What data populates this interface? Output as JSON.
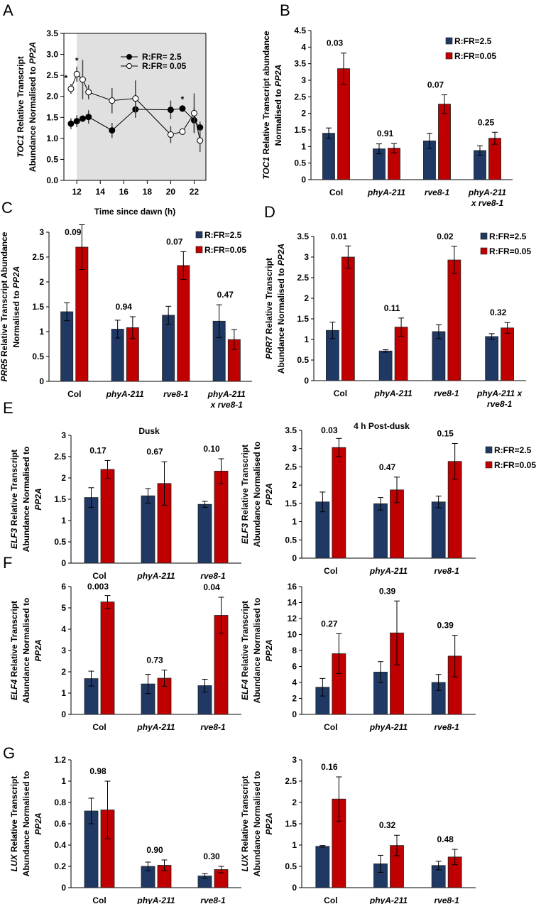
{
  "colors": {
    "high": "#1f3864",
    "low": "#c00000",
    "shade": "#e0e0e0"
  },
  "chart_data": [
    {
      "id": "A",
      "type": "line",
      "letter": "A",
      "xlabel": "Time since dawn (h)",
      "ylabel": [
        [
          {
            "t": "TOC1",
            "i": true
          },
          {
            "t": " Relative Transcript",
            "i": false
          }
        ],
        [
          {
            "t": "Abundance Normalised to ",
            "i": false
          },
          {
            "t": "PP2A",
            "i": true
          }
        ]
      ],
      "xlim": [
        10.9,
        23
      ],
      "ylim": [
        0,
        3.5
      ],
      "xticks": [
        12,
        14,
        16,
        18,
        20,
        22
      ],
      "yticks": [
        "0.0",
        "0.5",
        "1.0",
        "1.5",
        "2.0",
        "2.5",
        "3.0",
        "3.5"
      ],
      "shaded_from": 12,
      "x": [
        11.5,
        12,
        12.5,
        13,
        15,
        17,
        20,
        21,
        22,
        22.5
      ],
      "series": [
        {
          "name": "R:FR= 2.5",
          "filled": true,
          "values": [
            1.35,
            1.41,
            1.47,
            1.51,
            1.19,
            1.69,
            1.68,
            1.71,
            1.43,
            1.26
          ],
          "err": [
            0.13,
            0.14,
            0.05,
            0.16,
            0.18,
            0.2,
            0.22,
            0.08,
            0.3,
            0.14
          ]
        },
        {
          "name": "R:FR= 0.05",
          "filled": false,
          "values": [
            2.18,
            2.53,
            2.4,
            2.1,
            1.9,
            1.95,
            1.09,
            1.16,
            1.6,
            0.95
          ],
          "err": [
            0.12,
            0.18,
            0.47,
            0.17,
            0.3,
            0.43,
            0.2,
            0.03,
            0.47,
            0.27
          ]
        }
      ],
      "significance_marks": [
        {
          "x": 11.5,
          "text": "*"
        },
        {
          "x": 12,
          "text": "*"
        },
        {
          "x": 21,
          "text": "*"
        }
      ]
    },
    {
      "id": "B",
      "type": "bar",
      "letter": "B",
      "ylabel": [
        [
          {
            "t": "TOC1",
            "i": true
          },
          {
            "t": " Relative Transcript abundance",
            "i": false
          }
        ],
        [
          {
            "t": "Normalised to ",
            "i": false
          },
          {
            "t": "PP2A",
            "i": true
          }
        ]
      ],
      "ylim": [
        0,
        4.5
      ],
      "ystep": 0.5,
      "categories": [
        [
          "Col"
        ],
        [
          "phyA-211"
        ],
        [
          "rve8-1"
        ],
        [
          "phyA-211",
          "x rve8-1"
        ]
      ],
      "series": [
        {
          "name": "R:FR=2.5",
          "values": [
            1.4,
            0.93,
            1.17,
            0.88
          ],
          "err": [
            0.16,
            0.15,
            0.23,
            0.14
          ]
        },
        {
          "name": "R:FR=0.05",
          "values": [
            3.35,
            0.95,
            2.28,
            1.25
          ],
          "err": [
            0.47,
            0.14,
            0.28,
            0.18
          ]
        }
      ],
      "pvalues": [
        "0.03",
        "0.91",
        "0.07",
        "0.25"
      ]
    },
    {
      "id": "C",
      "type": "bar",
      "letter": "C",
      "ylabel": [
        [
          {
            "t": "PRR5",
            "i": true
          },
          {
            "t": " Relative Transcript Abundance",
            "i": false
          }
        ],
        [
          {
            "t": "Normalised to ",
            "i": false
          },
          {
            "t": "PP2A",
            "i": true
          }
        ]
      ],
      "ylim": [
        0,
        3
      ],
      "ystep": 0.5,
      "categories": [
        [
          "Col"
        ],
        [
          "phyA-211"
        ],
        [
          "rve8-1"
        ],
        [
          "phyA-211",
          "x rve8-1"
        ]
      ],
      "series": [
        {
          "name": "R:FR=2.5",
          "values": [
            1.4,
            1.05,
            1.33,
            1.21
          ],
          "err": [
            0.18,
            0.18,
            0.18,
            0.33
          ]
        },
        {
          "name": "R:FR=0.05",
          "values": [
            2.7,
            1.08,
            2.33,
            0.84
          ],
          "err": [
            0.45,
            0.22,
            0.28,
            0.2
          ]
        }
      ],
      "pvalues": [
        "0.09",
        "0.94",
        "0.07",
        "0.47"
      ]
    },
    {
      "id": "D",
      "type": "bar",
      "letter": "D",
      "ylabel": [
        [
          {
            "t": "PRR7",
            "i": true
          },
          {
            "t": " Relative Transcript",
            "i": false
          }
        ],
        [
          {
            "t": "Abundance Normalised to ",
            "i": false
          },
          {
            "t": "PP2A",
            "i": true
          }
        ]
      ],
      "ylim": [
        0,
        3.5
      ],
      "ystep": 0.5,
      "categories": [
        [
          "Col"
        ],
        [
          "phyA-211"
        ],
        [
          "rve8-1"
        ],
        [
          "phyA-211 x",
          "rve8-1"
        ]
      ],
      "series": [
        {
          "name": "R:FR=2.5",
          "values": [
            1.22,
            0.72,
            1.19,
            1.07
          ],
          "err": [
            0.2,
            0.03,
            0.17,
            0.07
          ]
        },
        {
          "name": "R:FR=0.05",
          "values": [
            3.0,
            1.3,
            2.93,
            1.28
          ],
          "err": [
            0.27,
            0.22,
            0.33,
            0.13
          ]
        }
      ],
      "pvalues": [
        "0.01",
        "0.11",
        "0.02",
        "0.32"
      ]
    },
    {
      "id": "E1",
      "type": "bar",
      "letter": "E",
      "title": "Dusk",
      "ylabel": [
        [
          {
            "t": "ELF3",
            "i": true
          },
          {
            "t": " Relative Transcript",
            "i": false
          }
        ],
        [
          {
            "t": "Abundance Normalised to",
            "i": false
          }
        ],
        [
          {
            "t": "PP2A",
            "i": true
          }
        ]
      ],
      "ylim": [
        0,
        3
      ],
      "ystep": 0.5,
      "categories": [
        [
          "Col"
        ],
        [
          "phyA-211"
        ],
        [
          "rve8-1"
        ]
      ],
      "series": [
        {
          "name": "R:FR=2.5",
          "values": [
            1.54,
            1.58,
            1.38
          ],
          "err": [
            0.23,
            0.17,
            0.07
          ]
        },
        {
          "name": "R:FR=0.05",
          "values": [
            2.2,
            1.87,
            2.16
          ],
          "err": [
            0.21,
            0.51,
            0.29
          ]
        }
      ],
      "pvalues": [
        "0.17",
        "0.67",
        "0.10"
      ]
    },
    {
      "id": "E2",
      "type": "bar",
      "title": "4 h Post-dusk",
      "ylabel": [
        [
          {
            "t": "ELF3",
            "i": true
          },
          {
            "t": " Relative Transcript",
            "i": false
          }
        ],
        [
          {
            "t": "Abundance Normalised to",
            "i": false
          }
        ],
        [
          {
            "t": "PP2A",
            "i": true
          }
        ]
      ],
      "ylim": [
        0,
        3.5
      ],
      "ystep": 0.5,
      "categories": [
        [
          "Col"
        ],
        [
          "phyA-211"
        ],
        [
          "rve8-1"
        ]
      ],
      "series": [
        {
          "name": "R:FR=2.5",
          "values": [
            1.54,
            1.49,
            1.54
          ],
          "err": [
            0.27,
            0.17,
            0.16
          ]
        },
        {
          "name": "R:FR=0.05",
          "values": [
            3.03,
            1.87,
            2.65
          ],
          "err": [
            0.25,
            0.35,
            0.49
          ]
        }
      ],
      "pvalues": [
        "0.03",
        "0.47",
        "0.15"
      ]
    },
    {
      "id": "F1",
      "type": "bar",
      "letter": "F",
      "ylabel": [
        [
          {
            "t": "ELF4",
            "i": true
          },
          {
            "t": " Relative Transcript",
            "i": false
          }
        ],
        [
          {
            "t": "Abundance Normalised to",
            "i": false
          }
        ],
        [
          {
            "t": "PP2A",
            "i": true
          }
        ]
      ],
      "ylim": [
        0,
        6
      ],
      "ystep": 1,
      "categories": [
        [
          "Col"
        ],
        [
          "phyA-211"
        ],
        [
          "rve8-1"
        ]
      ],
      "series": [
        {
          "name": "R:FR=2.5",
          "values": [
            1.68,
            1.43,
            1.35
          ],
          "err": [
            0.35,
            0.45,
            0.3
          ]
        },
        {
          "name": "R:FR=0.05",
          "values": [
            5.28,
            1.7,
            4.65
          ],
          "err": [
            0.3,
            0.38,
            0.85
          ]
        }
      ],
      "pvalues": [
        "0.003",
        "0.73",
        "0.04"
      ]
    },
    {
      "id": "F2",
      "type": "bar",
      "ylabel": [
        [
          {
            "t": "ELF4",
            "i": true
          },
          {
            "t": " Relative Transcript",
            "i": false
          }
        ],
        [
          {
            "t": "Abundance Normalised to",
            "i": false
          }
        ],
        [
          {
            "t": "PP2A",
            "i": true
          }
        ]
      ],
      "ylim": [
        0,
        16
      ],
      "ystep": 2,
      "categories": [
        [
          "Col"
        ],
        [
          "phyA-211"
        ],
        [
          "rve8-1"
        ]
      ],
      "series": [
        {
          "name": "R:FR=2.5",
          "values": [
            3.4,
            5.3,
            4.0
          ],
          "err": [
            1.1,
            1.3,
            1.0
          ]
        },
        {
          "name": "R:FR=0.05",
          "values": [
            7.6,
            10.2,
            7.3
          ],
          "err": [
            2.5,
            4.0,
            2.6
          ]
        }
      ],
      "pvalues": [
        "0.27",
        "0.39",
        "0.39"
      ]
    },
    {
      "id": "G1",
      "type": "bar",
      "letter": "G",
      "ylabel": [
        [
          {
            "t": "LUX",
            "i": true
          },
          {
            "t": " Relative Transcript",
            "i": false
          }
        ],
        [
          {
            "t": "Abundance Normalised to",
            "i": false
          }
        ],
        [
          {
            "t": "PP2A",
            "i": true
          }
        ]
      ],
      "ylim": [
        0,
        1.2
      ],
      "ystep": 0.2,
      "categories": [
        [
          "Col"
        ],
        [
          "phyA-211"
        ],
        [
          "rve8-1"
        ]
      ],
      "series": [
        {
          "name": "R:FR=2.5",
          "values": [
            0.72,
            0.2,
            0.11
          ],
          "err": [
            0.12,
            0.04,
            0.02
          ]
        },
        {
          "name": "R:FR=0.05",
          "values": [
            0.73,
            0.21,
            0.17
          ],
          "err": [
            0.27,
            0.05,
            0.03
          ]
        }
      ],
      "pvalues": [
        "0.98",
        "0.90",
        "0.30"
      ]
    },
    {
      "id": "G2",
      "type": "bar",
      "ylabel": [
        [
          {
            "t": "LUX",
            "i": true
          },
          {
            "t": " Relative Transcript",
            "i": false
          }
        ],
        [
          {
            "t": "Abundance Normalised to",
            "i": false
          }
        ],
        [
          {
            "t": "PP2A",
            "i": true
          }
        ]
      ],
      "ylim": [
        0,
        3
      ],
      "ystep": 0.5,
      "categories": [
        [
          "Col"
        ],
        [
          "phyA-211"
        ],
        [
          "rve8-1"
        ]
      ],
      "series": [
        {
          "name": "R:FR=2.5",
          "values": [
            0.97,
            0.56,
            0.52
          ],
          "err": [
            0.02,
            0.2,
            0.1
          ]
        },
        {
          "name": "R:FR=0.05",
          "values": [
            2.08,
            0.99,
            0.72
          ],
          "err": [
            0.52,
            0.24,
            0.18
          ]
        }
      ],
      "pvalues": [
        "0.16",
        "0.32",
        "0.48"
      ]
    }
  ]
}
